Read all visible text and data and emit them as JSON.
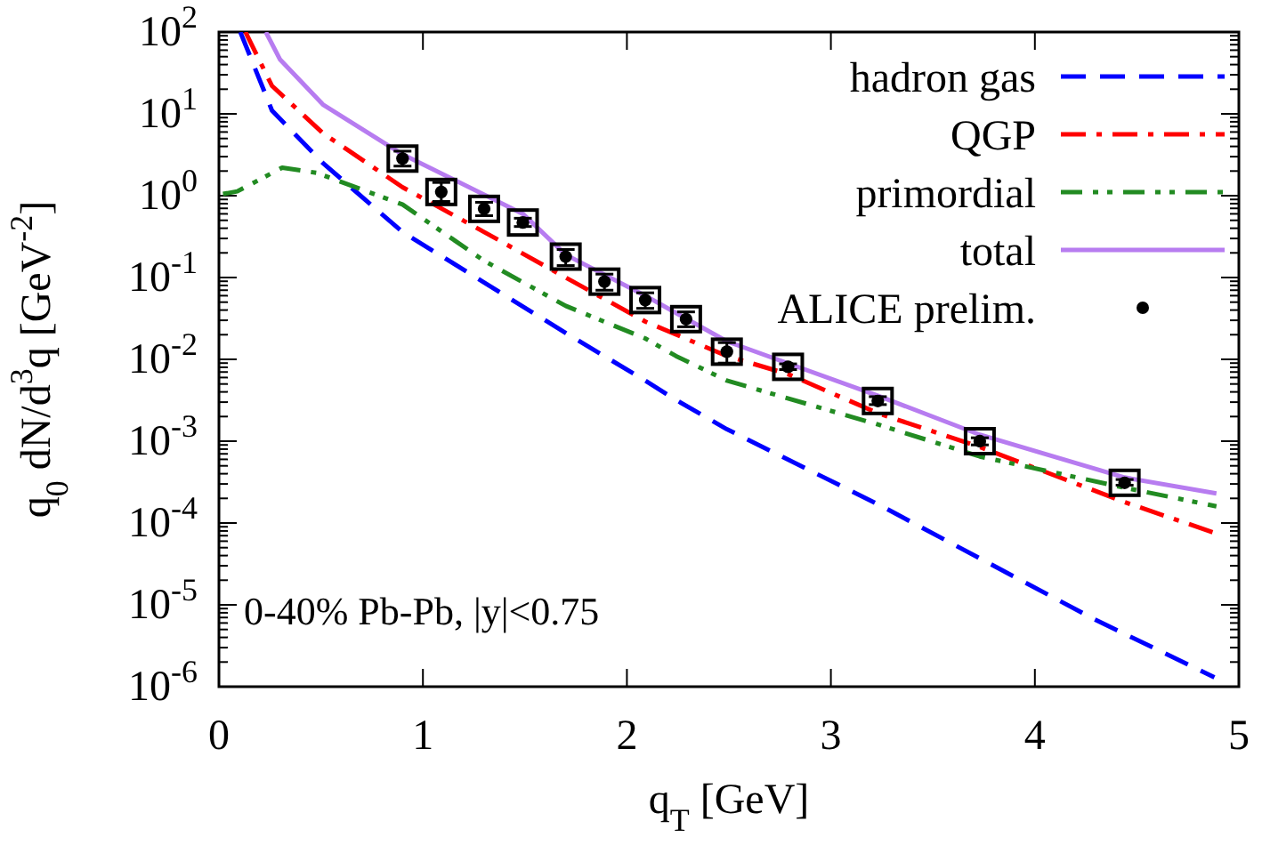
{
  "chart_data": {
    "type": "line",
    "xlabel": "q$_{T}$ [GeV]",
    "ylabel": "q$_{0}$ dN/d$^{3}$q [GeV$^{-2}$]",
    "annotations": [
      "0-40% Pb-Pb, |y|<0.75"
    ],
    "xlim": [
      0,
      5
    ],
    "xticks": [
      0,
      1,
      2,
      3,
      4,
      5
    ],
    "ylim": [
      1e-06,
      100
    ],
    "yticks": [
      {
        "value": 1e-06,
        "label": "10$^{-6}$"
      },
      {
        "value": 1e-05,
        "label": "10$^{-5}$"
      },
      {
        "value": 0.0001,
        "label": "10$^{-4}$"
      },
      {
        "value": 0.001,
        "label": "10$^{-3}$"
      },
      {
        "value": 0.01,
        "label": "10$^{-2}$"
      },
      {
        "value": 0.1,
        "label": "10$^{-1}$"
      },
      {
        "value": 1,
        "label": "10$^{0}$"
      },
      {
        "value": 10,
        "label": "10$^{1}$"
      },
      {
        "value": 100,
        "label": "10$^{2}$"
      }
    ],
    "log": "y",
    "grid": false,
    "legend": "top right",
    "series": [
      {
        "name": "hadron gas",
        "color": "#0000ff",
        "line_style": "dashed",
        "x": [
          0.105,
          0.26,
          0.51,
          0.9,
          1.3,
          1.7,
          2.09,
          2.24,
          2.49,
          3.23,
          4.28,
          4.88
        ],
        "values": [
          100,
          11,
          2.5,
          0.36,
          0.087,
          0.021,
          0.0055,
          0.0032,
          0.0014,
          0.00017,
          6.9e-06,
          1.3e-06
        ]
      },
      {
        "name": "QGP",
        "color": "#ff0000",
        "line_style": "dashed",
        "x": [
          0.13,
          0.26,
          0.51,
          0.9,
          1.3,
          1.7,
          2.09,
          2.49,
          2.79,
          3.23,
          3.73,
          4.44,
          4.88
        ],
        "values": [
          100,
          22,
          5.8,
          1.27,
          0.36,
          0.1,
          0.029,
          0.011,
          0.0066,
          0.0022,
          0.00085,
          0.00018,
          7.6e-05
        ]
      },
      {
        "name": "primordial",
        "color": "#228b22",
        "line_style": "dashed",
        "x": [
          0.02,
          0.09,
          0.31,
          0.48,
          0.9,
          1.3,
          1.7,
          2.09,
          2.24,
          2.49,
          3.23,
          3.73,
          4.44,
          4.89
        ],
        "values": [
          1.05,
          1.13,
          2.2,
          1.9,
          0.78,
          0.16,
          0.045,
          0.018,
          0.011,
          0.0055,
          0.0016,
          0.00065,
          0.00027,
          0.00016
        ]
      },
      {
        "name": "total",
        "color": "#b77cf0",
        "line_style": "solid",
        "x": [
          0.23,
          0.3,
          0.51,
          0.9,
          1.49,
          1.7,
          2.09,
          2.24,
          2.49,
          3.23,
          3.73,
          4.44,
          4.89
        ],
        "values": [
          100,
          46,
          13,
          3.2,
          0.6,
          0.19,
          0.06,
          0.037,
          0.0166,
          0.0036,
          0.0012,
          0.00036,
          0.00023
        ]
      },
      {
        "name": "ALICE prelim.",
        "type": "scatter",
        "marker": "circle",
        "color": "#000000",
        "x": [
          0.9,
          1.09,
          1.3,
          1.49,
          1.7,
          1.89,
          2.09,
          2.29,
          2.49,
          2.79,
          3.23,
          3.73,
          4.44
        ],
        "values": [
          2.84,
          1.11,
          0.69,
          0.47,
          0.18,
          0.089,
          0.053,
          0.031,
          0.0124,
          0.0081,
          0.0031,
          0.001,
          0.00031
        ],
        "errors": [
          [
            2.3,
            3.5
          ],
          [
            0.85,
            1.45
          ],
          [
            0.57,
            0.83
          ],
          [
            0.42,
            0.53
          ],
          [
            0.14,
            0.22
          ],
          [
            0.07,
            0.11
          ],
          [
            0.042,
            0.065
          ],
          [
            0.025,
            0.038
          ],
          [
            0.009,
            0.016
          ],
          [
            0.0075,
            0.0088
          ],
          [
            0.0028,
            0.0035
          ],
          [
            0.0009,
            0.0011
          ],
          [
            0.00029,
            0.00034
          ]
        ]
      }
    ]
  }
}
